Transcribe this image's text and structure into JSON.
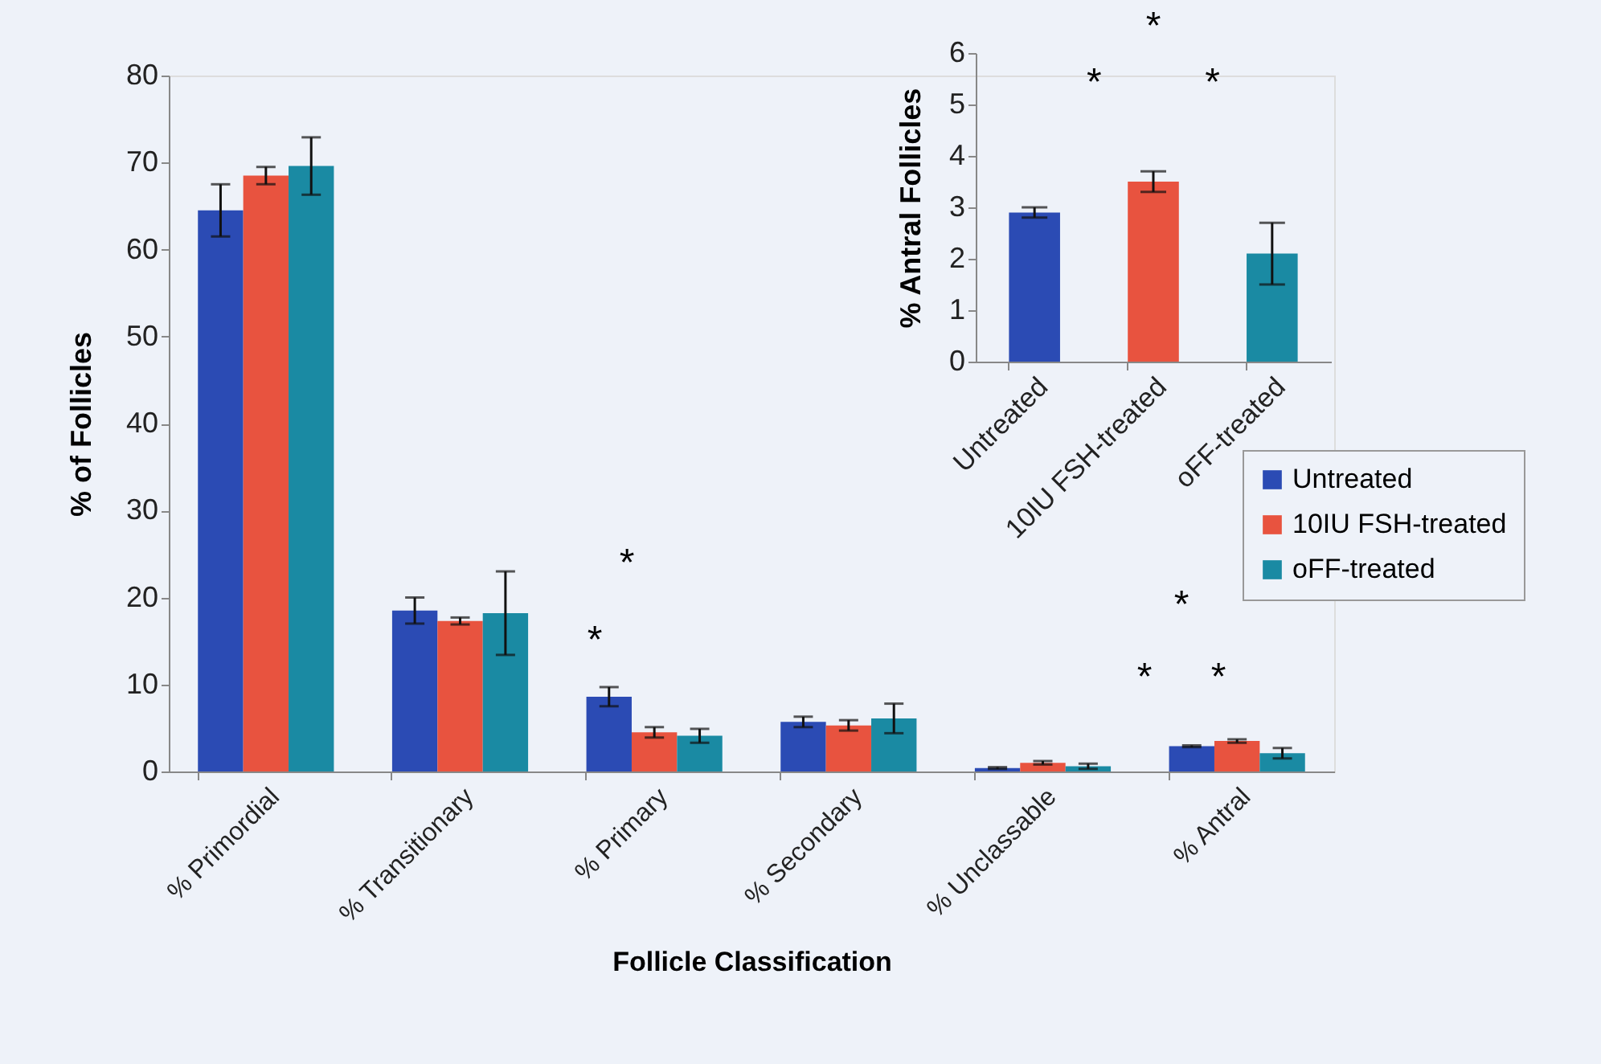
{
  "chart_data": [
    {
      "type": "bar",
      "xlabel": "Follicle Classification",
      "ylabel": "% of Follicles",
      "categories": [
        "% Primordial",
        "% Transitionary",
        "% Primary",
        "% Secondary",
        "% Unclassable",
        "% Antral"
      ],
      "series": [
        {
          "name": "Untreated",
          "color": "#2b4bb4",
          "values": [
            64.5,
            18.5,
            8.6,
            5.7,
            0.4,
            2.9
          ],
          "errors": [
            3,
            1.5,
            1.1,
            0.6,
            0.1,
            0.1
          ]
        },
        {
          "name": "10IU FSH-treated",
          "color": "#e8533f",
          "values": [
            68.5,
            17.3,
            4.5,
            5.3,
            1.0,
            3.5
          ],
          "errors": [
            1,
            0.4,
            0.6,
            0.6,
            0.2,
            0.2
          ]
        },
        {
          "name": "oFF-treated",
          "color": "#1a8aa3",
          "values": [
            69.6,
            18.2,
            4.1,
            6.1,
            0.6,
            2.1
          ],
          "errors": [
            3.3,
            4.8,
            0.8,
            1.7,
            0.3,
            0.6
          ]
        }
      ],
      "ylim": [
        0,
        80
      ],
      "yticks": [
        0,
        10,
        20,
        30,
        40,
        50,
        60,
        70,
        80
      ],
      "legend": "right",
      "annotations": [
        "*",
        "*",
        "*",
        "*",
        "*"
      ]
    },
    {
      "type": "bar",
      "ylabel": "% Antral Follicles",
      "categories": [
        "Untreated",
        "10IU FSH-treated",
        "oFF-treated"
      ],
      "values": [
        2.9,
        3.5,
        2.1
      ],
      "colors": [
        "#2b4bb4",
        "#e8533f",
        "#1a8aa3"
      ],
      "errors": [
        0.1,
        0.2,
        0.6
      ],
      "ylim": [
        0,
        6
      ],
      "yticks": [
        0,
        1,
        2,
        3,
        4,
        5,
        6
      ],
      "annotations": [
        "*",
        "*",
        "*"
      ]
    }
  ]
}
